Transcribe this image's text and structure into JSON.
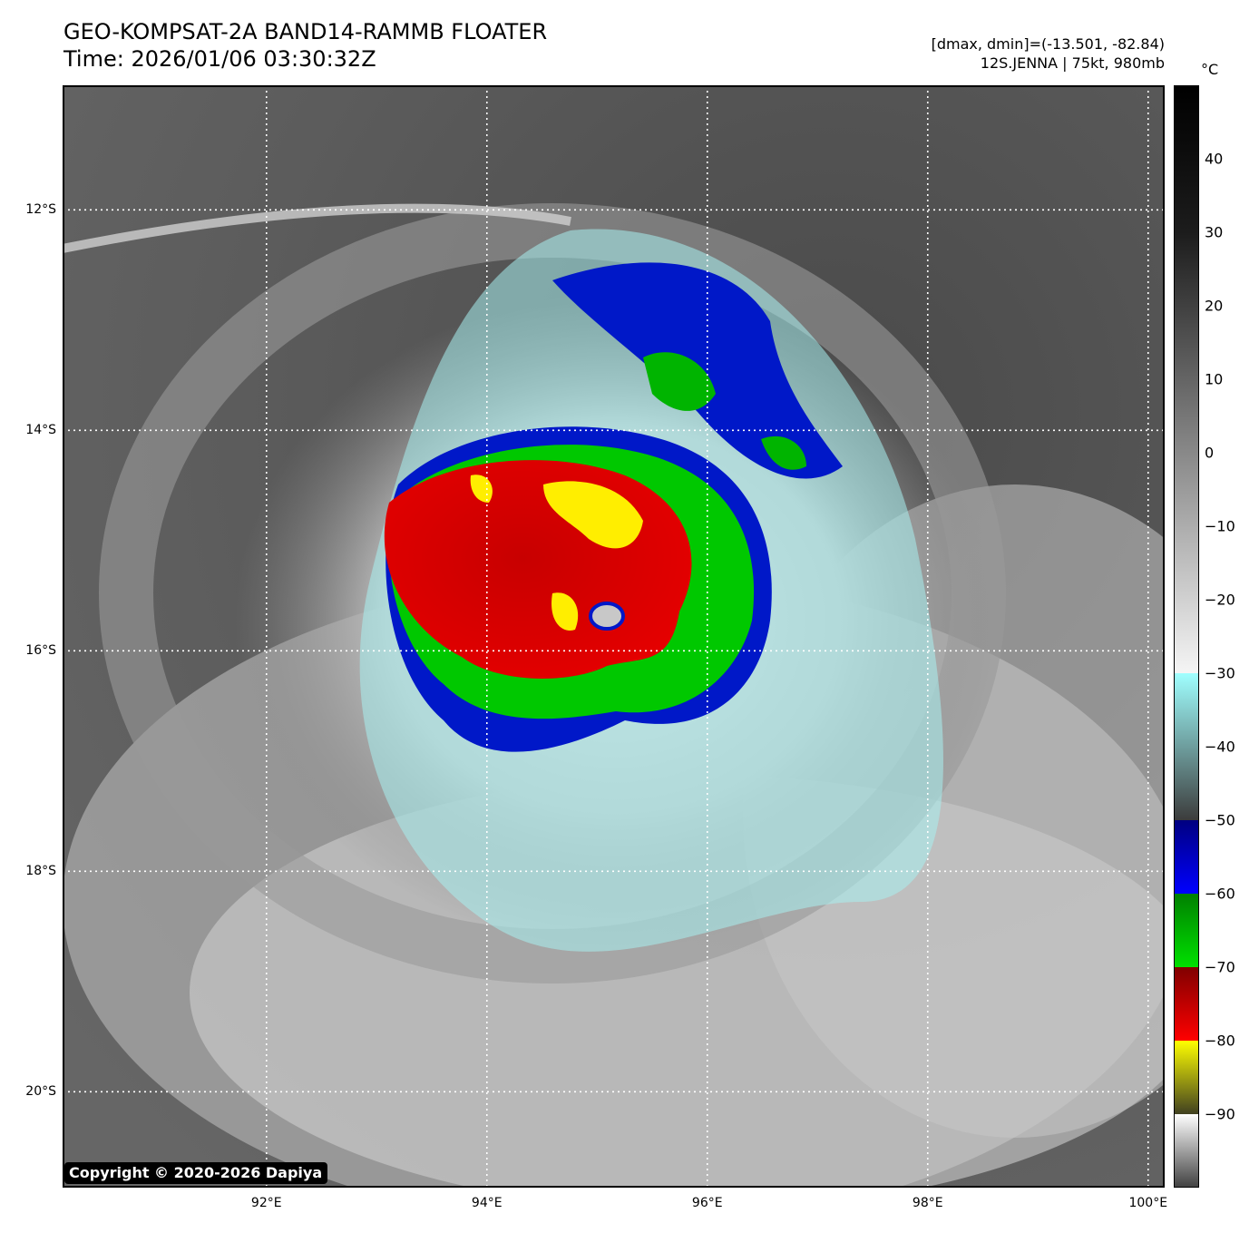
{
  "header": {
    "title_line1": "GEO-KOMPSAT-2A BAND14-RAMMB FLOATER",
    "title_line2": "Time: 2026/01/06 03:30:32Z",
    "dmax_dmin": "[dmax, dmin]=(-13.501, -82.84)",
    "storm_info": "12S.JENNA | 75kt, 980mb"
  },
  "map": {
    "lat_labels": [
      "12°S",
      "14°S",
      "16°S",
      "18°S",
      "20°S"
    ],
    "lon_labels": [
      "92°E",
      "94°E",
      "96°E",
      "98°E",
      "100°E"
    ],
    "lat_values": [
      -12,
      -14,
      -16,
      -18,
      -20
    ],
    "lon_values": [
      92,
      94,
      96,
      98,
      100
    ],
    "extent": {
      "lon_min": 90.15,
      "lon_max": 100.15,
      "lat_max": -10.87,
      "lat_min": -20.87
    },
    "grid": true,
    "storm_center": {
      "lon": 94.98,
      "lat": -15.55
    },
    "copyright": "Copyright © 2020-2026 Dapiya"
  },
  "colorbar": {
    "unit": "°C",
    "labels": [
      "40",
      "30",
      "20",
      "10",
      "0",
      "−10",
      "−20",
      "−30",
      "−40",
      "−50",
      "−60",
      "−70",
      "−80",
      "−90"
    ],
    "values": [
      40,
      30,
      20,
      10,
      0,
      -10,
      -20,
      -30,
      -40,
      -50,
      -60,
      -70,
      -80,
      -90
    ],
    "range": [
      -100,
      50
    ]
  },
  "colors": {
    "red": "#e00000",
    "yellow": "#ffee00",
    "green": "#00c800",
    "blue": "#0010c8",
    "cyan": "#a0f0f0",
    "grid": "#ffffff"
  }
}
